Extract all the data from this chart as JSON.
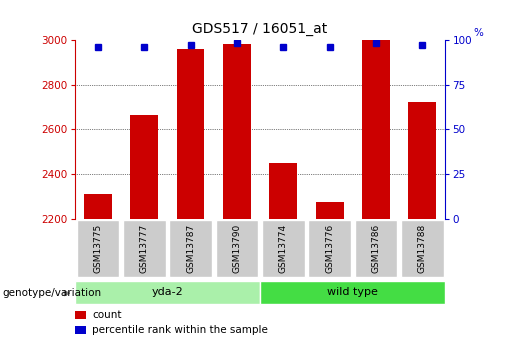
{
  "title": "GDS517 / 16051_at",
  "categories": [
    "GSM13775",
    "GSM13777",
    "GSM13787",
    "GSM13790",
    "GSM13774",
    "GSM13776",
    "GSM13786",
    "GSM13788"
  ],
  "bar_values": [
    2310,
    2665,
    2960,
    2980,
    2450,
    2275,
    3000,
    2720
  ],
  "percentile_values": [
    96,
    96,
    97,
    98,
    96,
    96,
    98,
    97
  ],
  "ymin": 2200,
  "ymax": 3000,
  "yticks": [
    2200,
    2400,
    2600,
    2800,
    3000
  ],
  "right_yticks": [
    0,
    25,
    50,
    75,
    100
  ],
  "bar_color": "#cc0000",
  "percentile_color": "#0000cc",
  "groups": [
    {
      "label": "yda-2",
      "start": 0,
      "end": 4,
      "color": "#aaf0aa"
    },
    {
      "label": "wild type",
      "start": 4,
      "end": 8,
      "color": "#44dd44"
    }
  ],
  "group_label": "genotype/variation",
  "legend_items": [
    {
      "label": "count",
      "color": "#cc0000"
    },
    {
      "label": "percentile rank within the sample",
      "color": "#0000cc"
    }
  ],
  "label_box_color": "#cccccc",
  "label_box_edge": "#ffffff"
}
